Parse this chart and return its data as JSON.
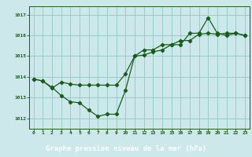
{
  "xlabel": "Graphe pression niveau de la mer (hPa)",
  "background_color": "#cce8ea",
  "xlabel_bg": "#2d6e2d",
  "grid_color": "#99cccc",
  "line_color": "#1a5c1a",
  "xlim": [
    -0.5,
    23.5
  ],
  "ylim": [
    1011.5,
    1017.4
  ],
  "yticks": [
    1012,
    1013,
    1014,
    1015,
    1016,
    1017
  ],
  "xticks": [
    0,
    1,
    2,
    3,
    4,
    5,
    6,
    7,
    8,
    9,
    10,
    11,
    12,
    13,
    14,
    15,
    16,
    17,
    18,
    19,
    20,
    21,
    22,
    23
  ],
  "series1_x": [
    0,
    1,
    2,
    3,
    4,
    5,
    6,
    7,
    8,
    9,
    10,
    11,
    12,
    13,
    14,
    15,
    16,
    17,
    18,
    19,
    20,
    21,
    22,
    23
  ],
  "series1_y": [
    1013.9,
    1013.8,
    1013.5,
    1013.1,
    1012.8,
    1012.75,
    1012.4,
    1012.1,
    1012.2,
    1012.2,
    1013.35,
    1015.0,
    1015.05,
    1015.2,
    1015.3,
    1015.55,
    1015.55,
    1016.1,
    1016.1,
    1016.85,
    1016.1,
    1016.0,
    1016.1,
    1016.0
  ],
  "series2_x": [
    0,
    1,
    2,
    3,
    4,
    5,
    6,
    7,
    8,
    9,
    10,
    11,
    12,
    13,
    14,
    15,
    16,
    17,
    18,
    19,
    20,
    21,
    22,
    23
  ],
  "series2_y": [
    1013.9,
    1013.8,
    1013.45,
    1013.75,
    1013.65,
    1013.6,
    1013.6,
    1013.6,
    1013.6,
    1013.6,
    1014.15,
    1015.0,
    1015.3,
    1015.3,
    1015.55,
    1015.55,
    1015.75,
    1015.75,
    1016.05,
    1016.1,
    1016.05,
    1016.1,
    1016.1,
    1016.0
  ]
}
